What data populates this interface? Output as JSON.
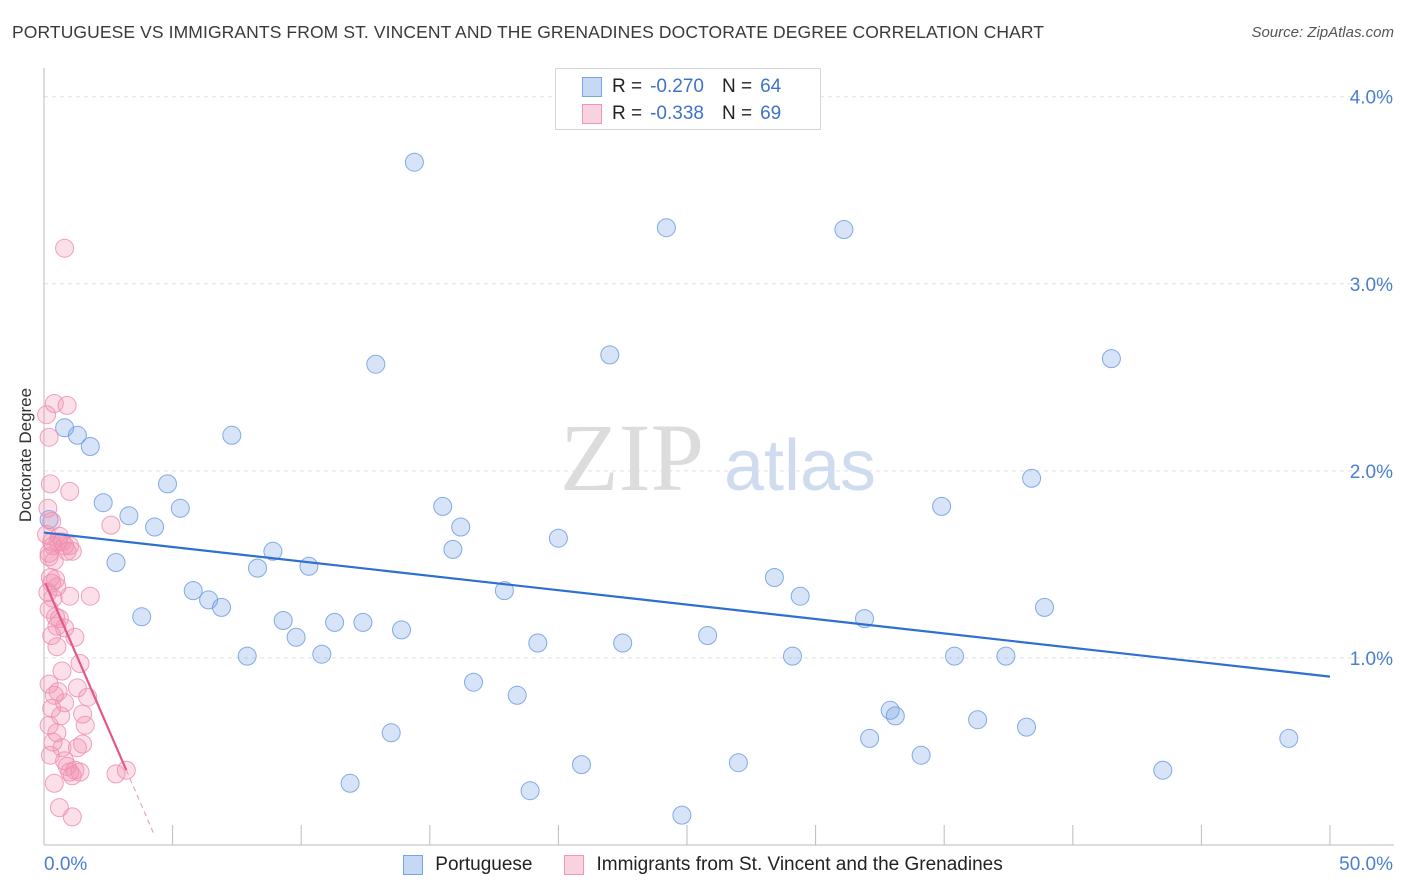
{
  "header": {
    "title": "PORTUGUESE VS IMMIGRANTS FROM ST. VINCENT AND THE GRENADINES DOCTORATE DEGREE CORRELATION CHART",
    "source": "Source: ZipAtlas.com"
  },
  "watermark": {
    "zip": "ZIP",
    "atlas": "atlas"
  },
  "legend": {
    "rows": [
      {
        "r_label": "R = ",
        "r_value": "-0.270",
        "n_label": "N = ",
        "n_value": "64",
        "color": "#6f9ee3"
      },
      {
        "r_label": "R = ",
        "r_value": "-0.338",
        "n_label": "N = ",
        "n_value": "69",
        "color": "#f08fb0"
      }
    ]
  },
  "bottom_legend": {
    "items": [
      {
        "label": "Portuguese",
        "color": "#6f9ee3"
      },
      {
        "label": "Immigrants from St. Vincent and the Grenadines",
        "color": "#f08fb0"
      }
    ]
  },
  "chart_data": {
    "type": "scatter",
    "title": "PORTUGUESE VS IMMIGRANTS FROM ST. VINCENT AND THE GRENADINES DOCTORATE DEGREE CORRELATION CHART",
    "xlabel": "",
    "ylabel": "Doctorate Degree",
    "xlim": [
      0,
      50
    ],
    "ylim": [
      0,
      4.1
    ],
    "x_tick_labels": [
      "0.0%",
      "50.0%"
    ],
    "y_ticks": [
      1.0,
      2.0,
      3.0,
      4.0
    ],
    "y_tick_labels": [
      "1.0%",
      "2.0%",
      "3.0%",
      "4.0%"
    ],
    "grid": true,
    "series": [
      {
        "name": "Portuguese",
        "color": "#6f9ee3",
        "trend": {
          "x": [
            0,
            50
          ],
          "y": [
            1.67,
            0.9
          ]
        },
        "points": [
          [
            0.2,
            1.74
          ],
          [
            0.8,
            2.23
          ],
          [
            1.3,
            2.19
          ],
          [
            1.8,
            2.13
          ],
          [
            2.3,
            1.83
          ],
          [
            2.8,
            1.51
          ],
          [
            3.3,
            1.76
          ],
          [
            3.8,
            1.22
          ],
          [
            4.3,
            1.7
          ],
          [
            4.8,
            1.93
          ],
          [
            5.3,
            1.8
          ],
          [
            5.8,
            1.36
          ],
          [
            6.4,
            1.31
          ],
          [
            6.9,
            1.27
          ],
          [
            7.3,
            2.19
          ],
          [
            7.9,
            1.01
          ],
          [
            8.3,
            1.48
          ],
          [
            8.9,
            1.57
          ],
          [
            9.3,
            1.2
          ],
          [
            9.8,
            1.11
          ],
          [
            10.3,
            1.49
          ],
          [
            10.8,
            1.02
          ],
          [
            11.3,
            1.19
          ],
          [
            11.9,
            0.33
          ],
          [
            12.4,
            1.19
          ],
          [
            12.9,
            2.57
          ],
          [
            13.5,
            0.6
          ],
          [
            13.9,
            1.15
          ],
          [
            14.4,
            3.65
          ],
          [
            15.5,
            1.81
          ],
          [
            15.9,
            1.58
          ],
          [
            16.2,
            1.7
          ],
          [
            16.7,
            0.87
          ],
          [
            17.9,
            1.36
          ],
          [
            18.4,
            0.8
          ],
          [
            18.9,
            0.29
          ],
          [
            19.2,
            1.08
          ],
          [
            20.0,
            1.64
          ],
          [
            20.9,
            0.43
          ],
          [
            22.0,
            2.62
          ],
          [
            22.5,
            1.08
          ],
          [
            24.2,
            3.3
          ],
          [
            24.8,
            0.16
          ],
          [
            25.8,
            1.12
          ],
          [
            27.0,
            0.44
          ],
          [
            28.4,
            1.43
          ],
          [
            29.1,
            1.01
          ],
          [
            29.4,
            1.33
          ],
          [
            31.1,
            3.29
          ],
          [
            31.9,
            1.21
          ],
          [
            32.1,
            0.57
          ],
          [
            32.9,
            0.72
          ],
          [
            33.1,
            0.69
          ],
          [
            34.1,
            0.48
          ],
          [
            34.9,
            1.81
          ],
          [
            35.4,
            1.01
          ],
          [
            36.3,
            0.67
          ],
          [
            37.4,
            1.01
          ],
          [
            38.2,
            0.63
          ],
          [
            38.4,
            1.96
          ],
          [
            38.9,
            1.27
          ],
          [
            41.5,
            2.6
          ],
          [
            43.5,
            0.4
          ],
          [
            48.4,
            0.57
          ]
        ]
      },
      {
        "name": "Immigrants from St. Vincent and the Grenadines",
        "color": "#f08fb0",
        "trend": {
          "x": [
            0.05,
            3.2
          ],
          "y": [
            1.4,
            0.4
          ]
        },
        "trend_dashed": {
          "x": [
            3.2,
            4.3
          ],
          "y": [
            0.4,
            0.05
          ]
        },
        "points": [
          [
            0.1,
            2.3
          ],
          [
            0.2,
            2.18
          ],
          [
            0.25,
            1.93
          ],
          [
            0.15,
            1.8
          ],
          [
            0.3,
            1.73
          ],
          [
            0.1,
            1.66
          ],
          [
            0.35,
            1.6
          ],
          [
            0.2,
            1.56
          ],
          [
            0.4,
            1.52
          ],
          [
            0.25,
            1.43
          ],
          [
            0.3,
            1.4
          ],
          [
            0.5,
            1.38
          ],
          [
            0.15,
            1.35
          ],
          [
            0.35,
            1.32
          ],
          [
            0.2,
            1.26
          ],
          [
            0.45,
            1.22
          ],
          [
            0.6,
            1.21
          ],
          [
            0.3,
            1.12
          ],
          [
            0.5,
            1.06
          ],
          [
            0.7,
            0.93
          ],
          [
            0.2,
            0.86
          ],
          [
            0.55,
            0.82
          ],
          [
            0.4,
            0.8
          ],
          [
            0.8,
            0.76
          ],
          [
            0.3,
            0.73
          ],
          [
            0.65,
            0.69
          ],
          [
            0.2,
            0.64
          ],
          [
            0.5,
            0.6
          ],
          [
            0.35,
            0.55
          ],
          [
            0.7,
            0.52
          ],
          [
            0.25,
            0.48
          ],
          [
            0.8,
            0.45
          ],
          [
            0.9,
            0.42
          ],
          [
            1.0,
            0.39
          ],
          [
            0.4,
            0.33
          ],
          [
            0.6,
            0.2
          ],
          [
            1.1,
            0.15
          ],
          [
            0.6,
            1.65
          ],
          [
            0.8,
            1.6
          ],
          [
            0.9,
            1.57
          ],
          [
            1.1,
            1.57
          ],
          [
            0.7,
            1.62
          ],
          [
            0.9,
            2.35
          ],
          [
            1.0,
            1.89
          ],
          [
            0.5,
            1.17
          ],
          [
            0.8,
            1.16
          ],
          [
            1.0,
            1.33
          ],
          [
            1.2,
            1.11
          ],
          [
            1.3,
            0.84
          ],
          [
            1.4,
            0.97
          ],
          [
            1.5,
            0.7
          ],
          [
            1.6,
            0.64
          ],
          [
            1.3,
            0.52
          ],
          [
            1.5,
            0.54
          ],
          [
            1.2,
            0.4
          ],
          [
            1.1,
            0.37
          ],
          [
            1.4,
            0.39
          ],
          [
            2.6,
            1.71
          ],
          [
            1.7,
            0.79
          ],
          [
            2.8,
            0.38
          ],
          [
            3.2,
            0.4
          ],
          [
            0.4,
            2.36
          ],
          [
            0.55,
            1.62
          ],
          [
            1.0,
            1.6
          ],
          [
            1.8,
            1.33
          ],
          [
            0.3,
            1.62
          ],
          [
            0.2,
            1.54
          ],
          [
            0.8,
            3.19
          ],
          [
            0.45,
            1.42
          ]
        ]
      }
    ]
  }
}
